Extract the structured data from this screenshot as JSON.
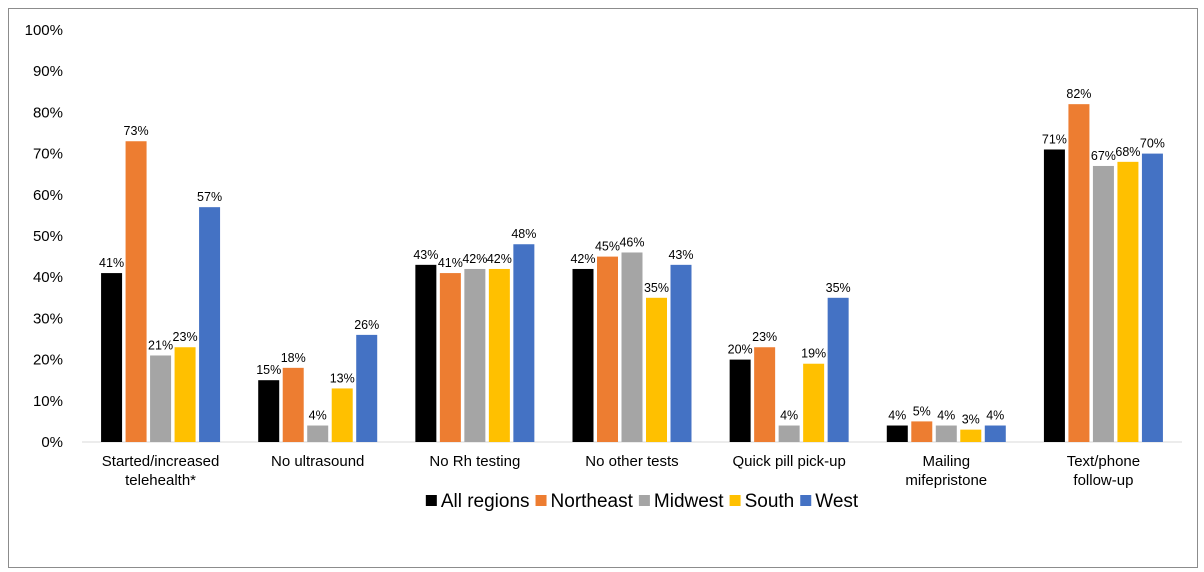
{
  "chart_data": {
    "type": "bar",
    "title": "",
    "xlabel": "",
    "ylabel": "",
    "ylim": [
      0,
      100
    ],
    "ytick_labels": [
      "0%",
      "10%",
      "20%",
      "30%",
      "40%",
      "50%",
      "60%",
      "70%",
      "80%",
      "90%",
      "100%"
    ],
    "grid": false,
    "legend_position": "bottom",
    "categories": [
      [
        "Started/increased",
        "telehealth*"
      ],
      [
        "No ultrasound"
      ],
      [
        "No Rh testing"
      ],
      [
        "No other tests"
      ],
      [
        "Quick pill pick-up"
      ],
      [
        "Mailing",
        "mifepristone"
      ],
      [
        "Text/phone",
        "follow-up"
      ]
    ],
    "series": [
      {
        "name": "All regions",
        "color": "#000000",
        "values": [
          41,
          15,
          43,
          42,
          20,
          4,
          71
        ],
        "labels": [
          "41%",
          "15%",
          "43%",
          "42%",
          "20%",
          "4%",
          "71%"
        ]
      },
      {
        "name": "Northeast",
        "color": "#ED7D31",
        "values": [
          73,
          18,
          41,
          45,
          23,
          5,
          82
        ],
        "labels": [
          "73%",
          "18%",
          "41%",
          "45%",
          "23%",
          "5%",
          "82%"
        ]
      },
      {
        "name": "Midwest",
        "color": "#A5A5A5",
        "values": [
          21,
          4,
          42,
          46,
          4,
          4,
          67
        ],
        "labels": [
          "21%",
          "4%",
          "42%",
          "46%",
          "4%",
          "4%",
          "67%"
        ]
      },
      {
        "name": "South",
        "color": "#FFC000",
        "values": [
          23,
          13,
          42,
          35,
          19,
          3,
          68
        ],
        "labels": [
          "23%",
          "13%",
          "42%",
          "35%",
          "19%",
          "3%",
          "68%"
        ]
      },
      {
        "name": "West",
        "color": "#4472C4",
        "values": [
          57,
          26,
          48,
          43,
          35,
          4,
          70
        ],
        "labels": [
          "57%",
          "26%",
          "48%",
          "43%",
          "35%",
          "4%",
          "70%"
        ]
      }
    ]
  }
}
